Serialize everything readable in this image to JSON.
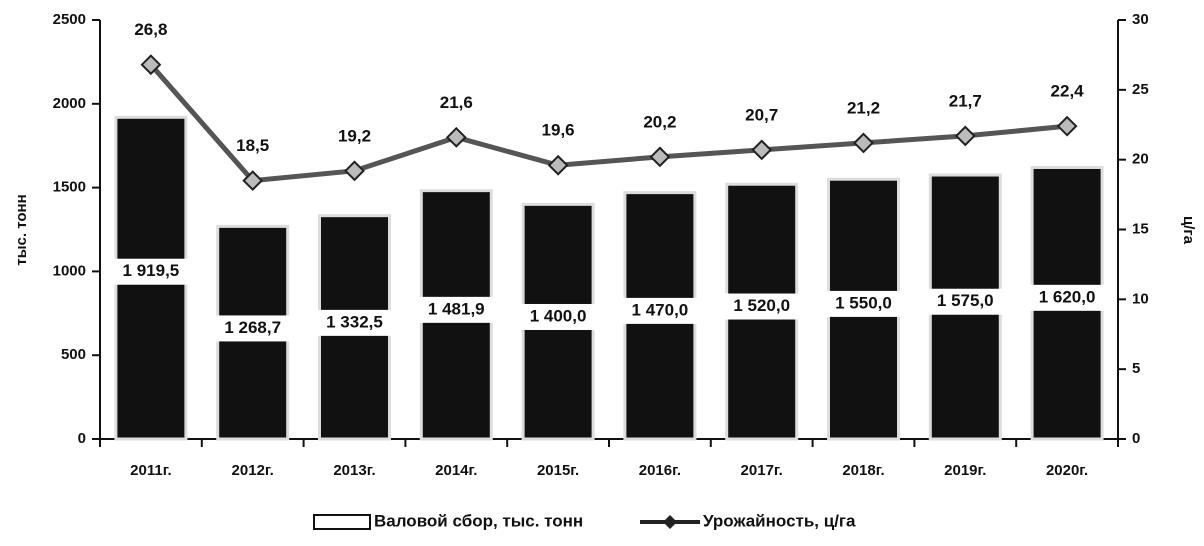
{
  "chart_data": {
    "type": "bar",
    "categories": [
      "2011г.",
      "2012г.",
      "2013г.",
      "2014г.",
      "2015г.",
      "2016г.",
      "2017г.",
      "2018г.",
      "2019г.",
      "2020г."
    ],
    "series": [
      {
        "name": "Валовой сбор, тыс. тонн",
        "type": "bar",
        "color": "#111111",
        "values": [
          1919.5,
          1268.7,
          1332.5,
          1481.9,
          1400.0,
          1470.0,
          1520.0,
          1550.0,
          1575.0,
          1620.0
        ],
        "value_labels": [
          "1 919,5",
          "1 268,7",
          "1 332,5",
          "1 481,9",
          "1 400,0",
          "1 470,0",
          "1 520,0",
          "1 550,0",
          "1 575,0",
          "1 620,0"
        ]
      },
      {
        "name": "Урожайность, ц/га",
        "type": "line",
        "axis": "y2",
        "color": "#555555",
        "values": [
          26.8,
          18.5,
          19.2,
          21.6,
          19.6,
          20.2,
          20.7,
          21.2,
          21.7,
          22.4
        ],
        "value_labels": [
          "26,8",
          "18,5",
          "19,2",
          "21,6",
          "19,6",
          "20,2",
          "20,7",
          "21,2",
          "21,7",
          "22,4"
        ]
      }
    ],
    "ylabel": "тыс. тонн",
    "y2label": "ц/га",
    "ylim": [
      0,
      2500
    ],
    "yticks": [
      0,
      500,
      1000,
      1500,
      2000,
      2500
    ],
    "y2lim": [
      0,
      30
    ],
    "y2ticks": [
      0,
      5,
      10,
      15,
      20,
      25,
      30
    ],
    "legend": "bottom"
  }
}
